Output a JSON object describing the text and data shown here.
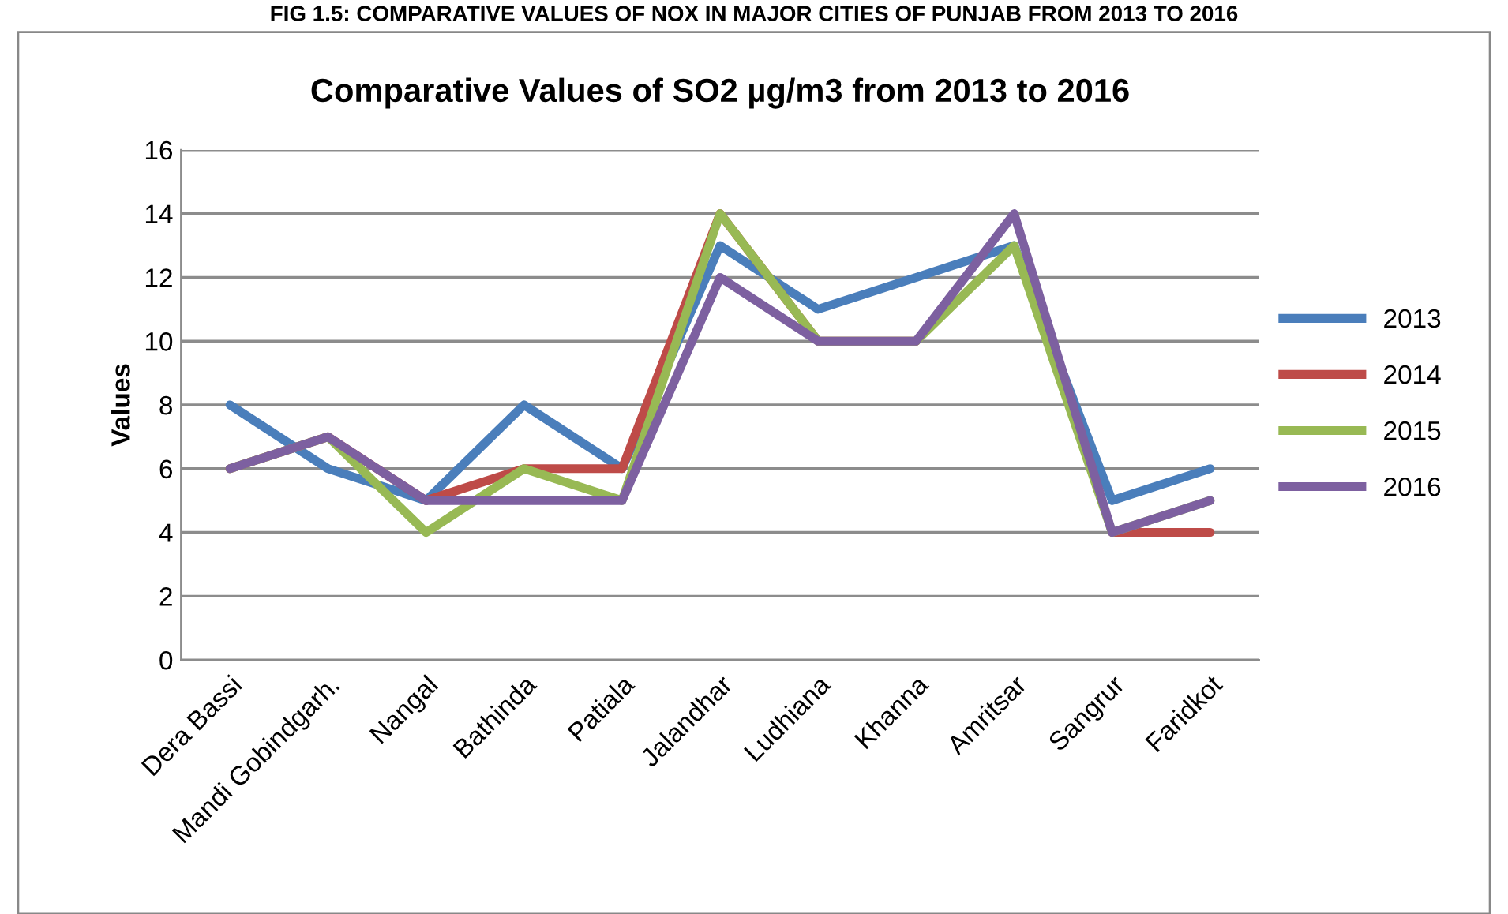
{
  "chart_data": {
    "type": "line",
    "title": "Comparative Values of SO2 µg/m3 from 2013 to 2016",
    "annotations": [
      "FIG 1.5: COMPARATIVE VALUES OF NOX IN MAJOR CITIES OF PUNJAB FROM 2013 TO 2016"
    ],
    "ylabel": "Values",
    "categories": [
      "Dera Bassi",
      "Mandi Gobindgarh.",
      "Nangal",
      "Bathinda",
      "Patiala",
      "Jalandhar",
      "Ludhiana",
      "Khanna",
      "Amritsar",
      "Sangrur",
      "Faridkot"
    ],
    "series": [
      {
        "name": "2013",
        "color": "#4a7ebb",
        "values": [
          8,
          6,
          5,
          8,
          6,
          13,
          11,
          12,
          13,
          5,
          6
        ]
      },
      {
        "name": "2014",
        "color": "#be4b48",
        "values": [
          6,
          7,
          5,
          6,
          6,
          14,
          10,
          10,
          null,
          4,
          4
        ]
      },
      {
        "name": "2015",
        "color": "#98b954",
        "values": [
          6,
          7,
          4,
          6,
          5,
          14,
          10,
          10,
          13,
          4,
          5
        ]
      },
      {
        "name": "2016",
        "color": "#7d60a0",
        "values": [
          6,
          7,
          5,
          5,
          5,
          12,
          10,
          10,
          14,
          4,
          5
        ]
      }
    ],
    "ylim": [
      0,
      16
    ],
    "yticks": [
      0,
      2,
      4,
      6,
      8,
      10,
      12,
      14,
      16
    ],
    "grid": "y",
    "legend": "right",
    "marker": "none",
    "line_style": "solid"
  }
}
